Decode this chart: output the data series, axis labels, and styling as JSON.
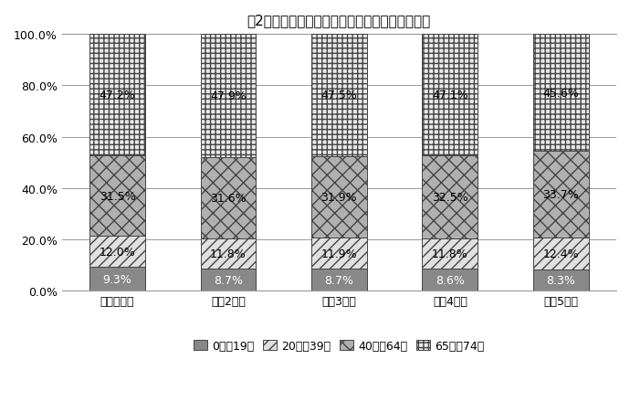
{
  "title": "囲2　年度末における被保険者の年齢構成の推移",
  "categories": [
    "令和元年度",
    "令和2年度",
    "令和3年度",
    "令和4年度",
    "令和5年度"
  ],
  "series": [
    {
      "label": "0歳～19歳",
      "values": [
        9.3,
        8.7,
        8.7,
        8.6,
        8.3
      ],
      "color": "#888888",
      "hatch": "",
      "label_color": "white"
    },
    {
      "label": "20歳～39歳",
      "values": [
        12.0,
        11.8,
        11.9,
        11.8,
        12.4
      ],
      "color": "#e0e0e0",
      "hatch": "///",
      "label_color": "black"
    },
    {
      "label": "40歳～64歳",
      "values": [
        31.5,
        31.6,
        31.9,
        32.5,
        33.7
      ],
      "color": "#b0b0b0",
      "hatch": "xx",
      "label_color": "black"
    },
    {
      "label": "65歳～74歳",
      "values": [
        47.2,
        47.9,
        47.5,
        47.1,
        45.6
      ],
      "color": "#e8e8e8",
      "hatch": "+++",
      "label_color": "black"
    }
  ],
  "ylim": [
    0,
    100
  ],
  "yticks": [
    0,
    20,
    40,
    60,
    80,
    100
  ],
  "yticklabels": [
    "0.0%",
    "20.0%",
    "40.0%",
    "60.0%",
    "80.0%",
    "100.0%"
  ],
  "bar_width": 0.5,
  "edgecolor": "#444444",
  "label_fontsize": 9,
  "title_fontsize": 11,
  "tick_fontsize": 9,
  "legend_fontsize": 9
}
